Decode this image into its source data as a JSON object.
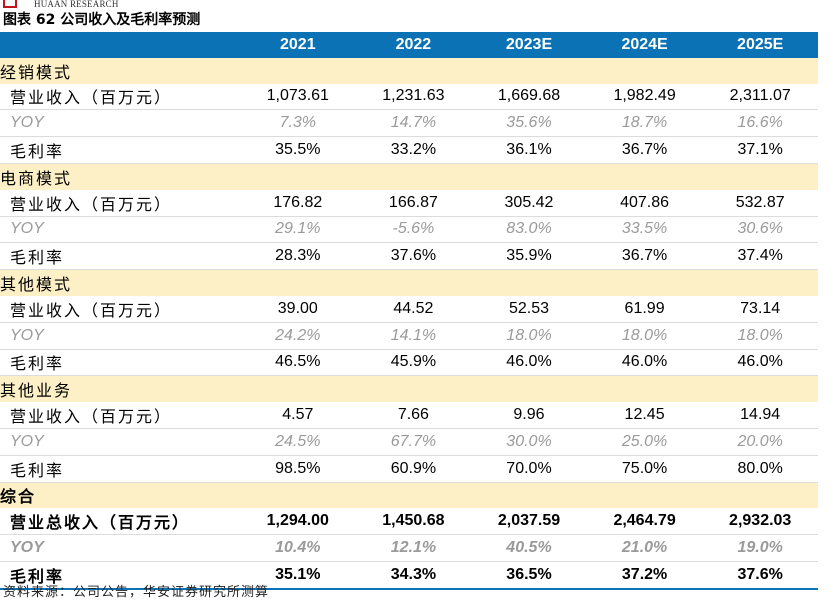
{
  "header": {
    "brand_en": "HUAAN RESEARCH",
    "figure_title": "图表 62 公司收入及毛利率预测"
  },
  "table": {
    "columns": [
      "",
      "2021",
      "2022",
      "2023E",
      "2024E",
      "2025E"
    ],
    "sections": [
      {
        "name": "经销模式",
        "rows": [
          {
            "label": "营业收入（百万元）",
            "values": [
              "1,073.61",
              "1,231.63",
              "1,669.68",
              "1,982.49",
              "2,311.07"
            ]
          },
          {
            "label": "YOY",
            "values": [
              "7.3%",
              "14.7%",
              "35.6%",
              "18.7%",
              "16.6%"
            ]
          },
          {
            "label": "毛利率",
            "values": [
              "35.5%",
              "33.2%",
              "36.1%",
              "36.7%",
              "37.1%"
            ]
          }
        ]
      },
      {
        "name": "电商模式",
        "rows": [
          {
            "label": "营业收入（百万元）",
            "values": [
              "176.82",
              "166.87",
              "305.42",
              "407.86",
              "532.87"
            ]
          },
          {
            "label": "YOY",
            "values": [
              "29.1%",
              "-5.6%",
              "83.0%",
              "33.5%",
              "30.6%"
            ]
          },
          {
            "label": "毛利率",
            "values": [
              "28.3%",
              "37.6%",
              "35.9%",
              "36.7%",
              "37.4%"
            ]
          }
        ]
      },
      {
        "name": "其他模式",
        "rows": [
          {
            "label": "营业收入（百万元）",
            "values": [
              "39.00",
              "44.52",
              "52.53",
              "61.99",
              "73.14"
            ]
          },
          {
            "label": "YOY",
            "values": [
              "24.2%",
              "14.1%",
              "18.0%",
              "18.0%",
              "18.0%"
            ]
          },
          {
            "label": "毛利率",
            "values": [
              "46.5%",
              "45.9%",
              "46.0%",
              "46.0%",
              "46.0%"
            ]
          }
        ]
      },
      {
        "name": "其他业务",
        "rows": [
          {
            "label": "营业收入（百万元）",
            "values": [
              "4.57",
              "7.66",
              "9.96",
              "12.45",
              "14.94"
            ]
          },
          {
            "label": "YOY",
            "values": [
              "24.5%",
              "67.7%",
              "30.0%",
              "25.0%",
              "20.0%"
            ]
          },
          {
            "label": "毛利率",
            "values": [
              "98.5%",
              "60.9%",
              "70.0%",
              "75.0%",
              "80.0%"
            ]
          }
        ]
      },
      {
        "name": "综合",
        "rows": [
          {
            "label": "营业总收入（百万元）",
            "values": [
              "1,294.00",
              "1,450.68",
              "2,037.59",
              "2,464.79",
              "2,932.03"
            ]
          },
          {
            "label": "YOY",
            "values": [
              "10.4%",
              "12.1%",
              "40.5%",
              "21.0%",
              "19.0%"
            ]
          },
          {
            "label": "毛利率",
            "values": [
              "35.1%",
              "34.3%",
              "36.5%",
              "37.2%",
              "37.6%"
            ]
          }
        ]
      }
    ]
  },
  "footer": {
    "source": "资料来源：公司公告，华安证券研究所测算"
  }
}
